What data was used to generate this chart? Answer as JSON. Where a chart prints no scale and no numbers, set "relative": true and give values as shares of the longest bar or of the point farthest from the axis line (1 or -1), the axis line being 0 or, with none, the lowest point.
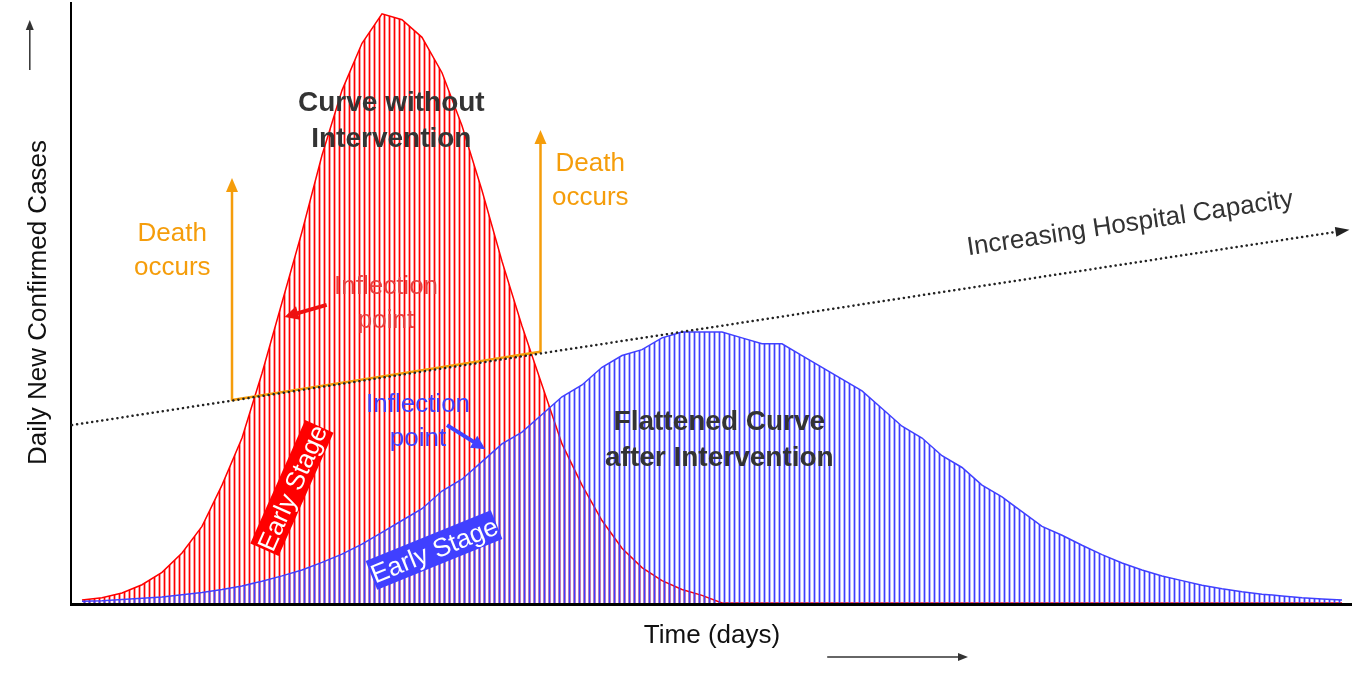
{
  "chart_data": {
    "type": "area",
    "relative": true,
    "xlabel": "Time (days)",
    "ylabel": "Daily New Confirmed Cases",
    "grid": false,
    "categories": [
      null,
      null,
      null,
      null,
      null,
      null,
      null,
      null,
      null,
      null,
      null,
      null,
      null,
      null,
      null,
      null,
      null,
      null,
      null,
      null,
      null,
      null,
      null,
      null,
      null,
      null,
      null,
      null,
      null,
      null,
      null,
      null,
      null,
      null,
      null,
      null,
      null,
      null,
      null,
      null,
      null,
      null,
      null,
      null,
      null,
      null,
      null,
      null,
      null,
      null,
      null,
      null,
      null,
      null,
      null,
      null,
      null,
      null,
      null,
      null,
      null,
      null,
      null,
      null
    ],
    "series": [
      {
        "color": "#ff0000",
        "values": [
          0.005,
          0.009,
          0.017,
          0.031,
          0.052,
          0.085,
          0.13,
          0.2,
          0.28,
          0.39,
          0.51,
          0.63,
          0.76,
          0.87,
          0.95,
          1,
          0.99,
          0.96,
          0.9,
          0.81,
          0.7,
          0.58,
          0.47,
          0.37,
          0.27,
          0.2,
          0.14,
          0.093,
          0.06,
          0.038,
          0.023,
          0.013,
          0,
          0,
          0,
          0,
          0,
          0,
          0,
          0,
          0,
          0,
          0,
          0,
          0,
          0,
          0,
          0,
          0,
          0,
          0,
          0,
          0,
          0,
          0,
          0,
          0,
          0,
          0,
          0,
          0,
          0,
          0,
          0
        ]
      },
      {
        "color": "#4040ff",
        "values": [
          0.003,
          0.004,
          0.006,
          0.008,
          0.01,
          0.014,
          0.018,
          0.023,
          0.029,
          0.037,
          0.046,
          0.056,
          0.069,
          0.083,
          0.1,
          0.12,
          0.14,
          0.16,
          0.19,
          0.21,
          0.24,
          0.27,
          0.29,
          0.32,
          0.35,
          0.37,
          0.4,
          0.42,
          0.43,
          0.45,
          0.46,
          0.46,
          0.46,
          0.45,
          0.44,
          0.44,
          0.42,
          0.4,
          0.38,
          0.36,
          0.33,
          0.3,
          0.28,
          0.25,
          0.23,
          0.2,
          0.18,
          0.155,
          0.13,
          0.115,
          0.098,
          0.082,
          0.068,
          0.056,
          0.046,
          0.038,
          0.03,
          0.024,
          0.019,
          0.015,
          0.012,
          0.009,
          0.007,
          0.005
        ]
      }
    ],
    "annotations": [
      "Curve without\nIntervention",
      "Death\noccurs",
      "Death\noccurs",
      "Inflection\npoint",
      "Inflection\npoint",
      "Early Stage",
      "Early Stage",
      "Flattened Curve\nafter Intervention",
      "Increasing Hospital Capacity"
    ]
  }
}
